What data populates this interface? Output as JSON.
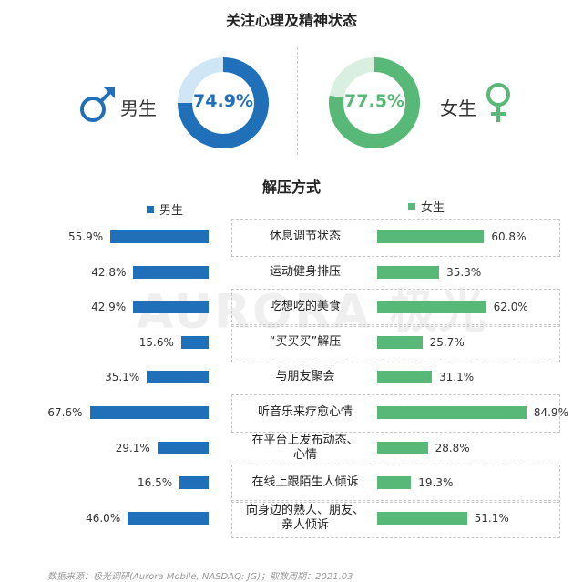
{
  "chart_data": [
    {
      "type": "pie",
      "title": "关注心理及精神状态",
      "series": [
        {
          "name": "男生",
          "value": 74.9,
          "label": "74.9%",
          "color": "#1f6fb9",
          "track_color": "#cfe6f7"
        },
        {
          "name": "女生",
          "value": 77.5,
          "label": "77.5%",
          "color": "#57b878",
          "track_color": "#d9efdf"
        }
      ]
    },
    {
      "type": "bar",
      "title": "解压方式",
      "categories": [
        [
          "休息调节状态"
        ],
        [
          "运动健身排压"
        ],
        [
          "吃想吃的美食"
        ],
        [
          "“买买买”解压"
        ],
        [
          "与朋友聚会"
        ],
        [
          "听音乐来疗愈心情"
        ],
        [
          "在平台上发布动态、",
          "心情"
        ],
        [
          "在线上跟陌生人倾诉"
        ],
        [
          "向身边的熟人、朋友、",
          "亲人倾诉"
        ]
      ],
      "series": [
        {
          "name": "男生",
          "color": "#1f6fb9",
          "values": [
            55.9,
            42.8,
            42.9,
            15.6,
            35.1,
            67.6,
            29.1,
            16.5,
            46.0
          ],
          "labels": [
            "55.9%",
            "42.8%",
            "42.9%",
            "15.6%",
            "35.1%",
            "67.6%",
            "29.1%",
            "16.5%",
            "46.0%"
          ]
        },
        {
          "name": "女生",
          "color": "#57b878",
          "values": [
            60.8,
            35.3,
            62.0,
            25.7,
            31.1,
            84.9,
            28.8,
            19.3,
            51.1
          ],
          "labels": [
            "60.8%",
            "35.3%",
            "62.0%",
            "25.7%",
            "31.1%",
            "84.9%",
            "28.8%",
            "19.3%",
            "51.1%"
          ]
        }
      ]
    }
  ],
  "gender": {
    "male": "男生",
    "female": "女生"
  },
  "legend": {
    "male": "男生",
    "female": "女生"
  },
  "icons": {
    "male": "male-symbol-icon",
    "female": "female-symbol-icon"
  },
  "watermark": "AURORA 极光",
  "footer": "数据来源：极光调研(Aurora Mobile, NASDAQ: JG)；取数周期：2021.03"
}
